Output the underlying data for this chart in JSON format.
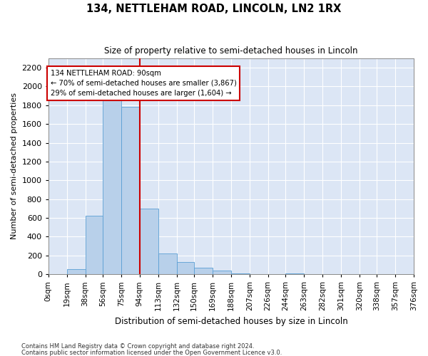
{
  "title": "134, NETTLEHAM ROAD, LINCOLN, LN2 1RX",
  "subtitle": "Size of property relative to semi-detached houses in Lincoln",
  "xlabel": "Distribution of semi-detached houses by size in Lincoln",
  "ylabel": "Number of semi-detached properties",
  "annotation_line1": "134 NETTLEHAM ROAD: 90sqm",
  "annotation_line2": "← 70% of semi-detached houses are smaller (3,867)",
  "annotation_line3": "29% of semi-detached houses are larger (1,604) →",
  "footer_line1": "Contains HM Land Registry data © Crown copyright and database right 2024.",
  "footer_line2": "Contains public sector information licensed under the Open Government Licence v3.0.",
  "property_size_sqm": 90,
  "bins_left_edges": [
    0,
    19,
    38,
    56,
    75,
    94,
    113,
    132,
    150,
    169,
    188,
    207,
    226,
    244,
    263,
    282,
    301,
    320,
    338,
    357
  ],
  "bin_labels": [
    "0sqm",
    "19sqm",
    "38sqm",
    "56sqm",
    "75sqm",
    "94sqm",
    "113sqm",
    "132sqm",
    "150sqm",
    "169sqm",
    "188sqm",
    "207sqm",
    "226sqm",
    "244sqm",
    "263sqm",
    "282sqm",
    "301sqm",
    "320sqm",
    "338sqm",
    "357sqm",
    "376sqm"
  ],
  "bar_heights": [
    0,
    50,
    620,
    1870,
    1780,
    700,
    220,
    130,
    70,
    40,
    10,
    0,
    0,
    10,
    0,
    0,
    0,
    0,
    0,
    0
  ],
  "bar_color": "#b8d0ea",
  "bar_edge_color": "#5a9fd4",
  "vline_color": "#cc0000",
  "vline_x": 94,
  "annotation_box_color": "#cc0000",
  "background_color": "#dce6f5",
  "ylim": [
    0,
    2300
  ],
  "yticks": [
    0,
    200,
    400,
    600,
    800,
    1000,
    1200,
    1400,
    1600,
    1800,
    2000,
    2200
  ]
}
